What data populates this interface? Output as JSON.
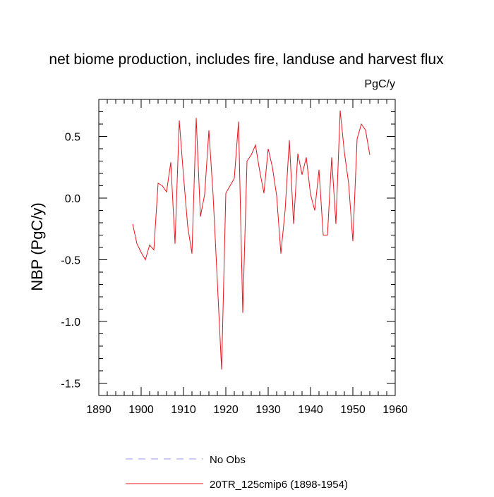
{
  "chart_data": {
    "type": "line",
    "title": "net biome production, includes fire, landuse and harvest flux",
    "units_label": "PgC/y",
    "xlabel": "",
    "ylabel": "NBP  (PgC/y)",
    "xlim": [
      1890,
      1960
    ],
    "ylim": [
      -1.6,
      0.8
    ],
    "xticks": [
      1890,
      1900,
      1910,
      1920,
      1930,
      1940,
      1950,
      1960
    ],
    "xtick_labels": [
      "1890",
      "1900",
      "1910",
      "1920",
      "1930",
      "1940",
      "1950",
      "1960"
    ],
    "yticks": [
      -1.5,
      -1.0,
      -0.5,
      0.0,
      0.5
    ],
    "ytick_labels": [
      "-1.5",
      "-1.0",
      "-0.5",
      "0.0",
      "0.5"
    ],
    "series": [
      {
        "name": "20TR_125cmip6 (1898-1954)",
        "color": "#e8141e",
        "style": "solid",
        "x": [
          1898,
          1899,
          1900,
          1901,
          1902,
          1903,
          1904,
          1905,
          1906,
          1907,
          1908,
          1909,
          1910,
          1911,
          1912,
          1913,
          1914,
          1915,
          1916,
          1917,
          1918,
          1919,
          1920,
          1921,
          1922,
          1923,
          1924,
          1925,
          1926,
          1927,
          1928,
          1929,
          1930,
          1931,
          1932,
          1933,
          1934,
          1935,
          1936,
          1937,
          1938,
          1939,
          1940,
          1941,
          1942,
          1943,
          1944,
          1945,
          1946,
          1947,
          1948,
          1949,
          1950,
          1951,
          1952,
          1953,
          1954
        ],
        "values": [
          -0.21,
          -0.37,
          -0.44,
          -0.5,
          -0.38,
          -0.42,
          0.12,
          0.1,
          0.05,
          0.29,
          -0.37,
          0.63,
          0.18,
          -0.23,
          -0.45,
          0.65,
          -0.15,
          0.03,
          0.55,
          0.02,
          -0.68,
          -1.39,
          0.04,
          0.1,
          0.16,
          0.62,
          -0.93,
          0.3,
          0.35,
          0.43,
          0.22,
          0.04,
          0.4,
          0.25,
          0.02,
          -0.45,
          -0.1,
          0.47,
          -0.21,
          0.36,
          0.19,
          0.33,
          0.03,
          -0.1,
          0.23,
          -0.3,
          -0.3,
          0.33,
          -0.21,
          0.71,
          0.37,
          0.12,
          -0.35,
          0.48,
          0.6,
          0.55,
          0.35
        ]
      },
      {
        "name": "No Obs",
        "color": "#9999ff",
        "style": "dashed",
        "x": [],
        "values": []
      }
    ]
  }
}
